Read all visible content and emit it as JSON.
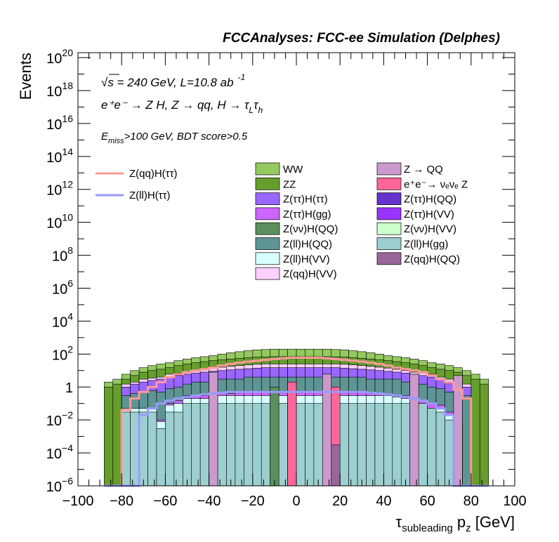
{
  "header": {
    "title": "FCCAnalyses: FCC-ee Simulation (Delphes)"
  },
  "info": {
    "sqrt_s": "√s = 240 GeV, L=10.8 ab",
    "lumi_exp": "-1",
    "process": "e⁺e⁻ → Z H, Z → qq, H → τ",
    "tau_sub_l": "L",
    "tau_sub_h": "h",
    "cuts": ">100 GeV, BDT score>0.5",
    "emiss_e": "E",
    "emiss_sub": "miss"
  },
  "chart_data": {
    "type": "bar",
    "xlabel": "τ",
    "xlabel_sub": "subleading",
    "xlabel_tail": " p",
    "xlabel_tail_sub": "z",
    "xlabel_unit": " [GeV]",
    "ylabel": "Events",
    "xlim": [
      -100,
      100
    ],
    "ylim": [
      1e-06,
      2e+20
    ],
    "log_y": true,
    "grid": false,
    "legend_position": "center",
    "x_ticks": [
      "−100",
      "−80",
      "−60",
      "−40",
      "−20",
      "0",
      "20",
      "40",
      "60",
      "80",
      "100"
    ],
    "y_ticks": [
      {
        "base": "10",
        "exp": "−6",
        "value": 1e-06
      },
      {
        "base": "10",
        "exp": "−4",
        "value": 0.0001
      },
      {
        "base": "10",
        "exp": "−2",
        "value": 0.01
      },
      {
        "base": "1",
        "exp": "",
        "value": 1
      },
      {
        "base": "10",
        "exp": "2",
        "value": 100.0
      },
      {
        "base": "10",
        "exp": "4",
        "value": 10000.0
      },
      {
        "base": "10",
        "exp": "6",
        "value": 1000000.0
      },
      {
        "base": "10",
        "exp": "8",
        "value": 100000000.0
      },
      {
        "base": "10",
        "exp": "10",
        "value": 10000000000.0
      },
      {
        "base": "10",
        "exp": "12",
        "value": 1000000000000.0
      },
      {
        "base": "10",
        "exp": "14",
        "value": 100000000000000.0
      },
      {
        "base": "10",
        "exp": "16",
        "value": 1e+16
      },
      {
        "base": "10",
        "exp": "18",
        "value": 1e+18
      },
      {
        "base": "10",
        "exp": "20",
        "value": 1e+20
      }
    ],
    "bin_edges": [
      -88,
      -84,
      -80,
      -76,
      -72,
      -68,
      -64,
      -60,
      -56,
      -52,
      -48,
      -44,
      -40,
      -36,
      -32,
      -28,
      -24,
      -20,
      -16,
      -12,
      -8,
      -4,
      0,
      4,
      8,
      12,
      16,
      20,
      24,
      28,
      32,
      36,
      40,
      44,
      48,
      52,
      56,
      60,
      64,
      68,
      72,
      76,
      80,
      84,
      88
    ],
    "stack_levels": [
      {
        "name": "Z(ll)H(gg)",
        "color": "#9ccfcf",
        "values": [
          1e-06,
          1e-06,
          0.03,
          0.03,
          0.03,
          0.03,
          0.003,
          0.03,
          0.03,
          0.1,
          0.1,
          0.1,
          0.1,
          0.1,
          0.1,
          0.1,
          0.1,
          0.1,
          0.1,
          0.1,
          0.1,
          0.1,
          0.1,
          0.1,
          0.1,
          0.1,
          0.1,
          0.1,
          0.1,
          0.1,
          0.1,
          0.1,
          0.1,
          0.1,
          0.1,
          0.1,
          0.1,
          0.05,
          0.03,
          0.01,
          0.01,
          1e-06,
          1e-06,
          1e-06
        ]
      },
      {
        "name": "Z(ll)H(VV)",
        "color": "#d8ffff",
        "values": [
          1e-06,
          1e-06,
          0.05,
          0.05,
          0.05,
          0.05,
          0.008,
          0.08,
          0.1,
          0.2,
          0.2,
          0.2,
          0.25,
          0.3,
          0.3,
          0.3,
          0.3,
          0.3,
          0.3,
          0.3,
          0.3,
          0.3,
          0.3,
          0.3,
          0.3,
          0.3,
          0.3,
          0.3,
          0.3,
          0.3,
          0.3,
          0.3,
          0.3,
          0.25,
          0.2,
          0.2,
          0.1,
          0.05,
          0.05,
          0.02,
          0.01,
          1e-06,
          1e-06,
          1e-06
        ]
      },
      {
        "name": "Z(ττ)H(gg)",
        "color": "#cc66ff",
        "values": [
          1e-06,
          1e-06,
          0.05,
          0.05,
          0.05,
          0.05,
          0.01,
          0.1,
          0.15,
          0.3,
          0.3,
          0.3,
          0.35,
          0.4,
          0.4,
          0.5,
          0.5,
          0.5,
          0.5,
          0.5,
          0.5,
          0.5,
          0.5,
          0.5,
          0.5,
          0.5,
          0.5,
          0.5,
          0.5,
          0.5,
          0.4,
          0.4,
          0.35,
          0.3,
          0.3,
          0.3,
          0.15,
          0.1,
          0.08,
          0.03,
          0.01,
          1e-06,
          1e-06,
          1e-06
        ]
      },
      {
        "name": "Z(ll)H(QQ)",
        "color": "#5f9494",
        "values": [
          1e-06,
          1e-06,
          0.3,
          0.4,
          0.5,
          0.6,
          0.5,
          0.8,
          1,
          1.5,
          2,
          2,
          3,
          3,
          3,
          3,
          4,
          4,
          4,
          4,
          4,
          4,
          4,
          4,
          4,
          4,
          4,
          4,
          4,
          4,
          3,
          3,
          3,
          3,
          2,
          2,
          1.5,
          1,
          0.8,
          0.5,
          0.4,
          0.3,
          1e-06,
          1e-06
        ]
      },
      {
        "name": "Z(ττ)H(ττ)",
        "color": "#9966ff",
        "values": [
          1e-06,
          1e-06,
          1,
          1.5,
          2,
          2.5,
          3,
          4,
          5,
          6,
          7,
          8,
          9,
          10,
          11,
          12,
          13,
          14,
          15,
          15,
          15,
          15,
          15,
          15,
          15,
          15,
          15,
          14,
          13,
          12,
          11,
          10,
          9,
          8,
          7,
          6,
          5,
          4,
          3,
          2,
          1.5,
          1,
          1e-06,
          1e-06
        ]
      },
      {
        "name": "Z(qq)H(VV)",
        "color": "#ffd0ff",
        "values": [
          1e-06,
          1e-06,
          1.5,
          2,
          3,
          3.5,
          4,
          6,
          7,
          8,
          10,
          12,
          14,
          16,
          18,
          20,
          22,
          24,
          25,
          25,
          25,
          25,
          25,
          25,
          25,
          25,
          25,
          24,
          22,
          20,
          18,
          16,
          14,
          12,
          10,
          8,
          7,
          6,
          4,
          3,
          2,
          1.5,
          1e-06,
          1e-06
        ]
      },
      {
        "name": "ZZ",
        "color": "#659e2c",
        "values": [
          1,
          1.5,
          3,
          5,
          8,
          10,
          12,
          15,
          20,
          25,
          30,
          35,
          40,
          45,
          50,
          55,
          60,
          65,
          68,
          70,
          70,
          70,
          70,
          70,
          70,
          70,
          68,
          65,
          60,
          55,
          50,
          45,
          40,
          35,
          30,
          25,
          20,
          15,
          12,
          10,
          8,
          5,
          3,
          1.5
        ]
      },
      {
        "name": "WW",
        "color": "#94c95f",
        "values": [
          2,
          3,
          6,
          10,
          15,
          20,
          25,
          30,
          40,
          50,
          60,
          70,
          80,
          100,
          120,
          140,
          160,
          180,
          190,
          200,
          200,
          200,
          200,
          200,
          200,
          200,
          190,
          180,
          160,
          140,
          120,
          100,
          80,
          70,
          60,
          50,
          40,
          30,
          25,
          20,
          15,
          10,
          6,
          3
        ]
      }
    ],
    "spikes": [
      {
        "name": "e⁺e⁻ → νₑνₑ Z",
        "color": "#ff6699",
        "bins": [
          [
            -4,
            0,
            2
          ],
          [
            16,
            20,
            1
          ]
        ]
      },
      {
        "name": "Z(νν)H(QQ)",
        "color": "#5d8f5d",
        "bins": [
          [
            -12,
            -8,
            1
          ]
        ]
      },
      {
        "name": "Z(qq)H(QQ)",
        "color": "#996699",
        "bins": [
          [
            16,
            20,
            0.0003
          ]
        ]
      },
      {
        "name": "Z → QQ",
        "color": "#cc99cc",
        "bins": [
          [
            -40,
            -36,
            8
          ],
          [
            12,
            16,
            6
          ],
          [
            52,
            56,
            6
          ],
          [
            72,
            76,
            5
          ]
        ]
      }
    ],
    "overlays": [
      {
        "name": "Z(qq)H(ττ)",
        "color": "#ff9999",
        "values": [
          1e-06,
          1e-06,
          0.04,
          0.2,
          0.5,
          1,
          2,
          4,
          6,
          8,
          10,
          12,
          15,
          20,
          25,
          30,
          35,
          40,
          45,
          50,
          55,
          60,
          60,
          60,
          60,
          55,
          50,
          45,
          40,
          35,
          30,
          25,
          20,
          15,
          12,
          10,
          8,
          5,
          3,
          2,
          0.7,
          0.2,
          1e-06,
          1e-06
        ]
      },
      {
        "name": "Z(ll)H(ττ)",
        "color": "#9999ff",
        "values": [
          1e-06,
          1e-06,
          1e-06,
          1e-06,
          0.02,
          0.05,
          0.1,
          0.15,
          0.2,
          0.25,
          0.3,
          0.35,
          0.4,
          0.45,
          0.5,
          0.5,
          0.5,
          0.5,
          0.5,
          0.5,
          0.5,
          0.5,
          0.5,
          0.5,
          0.5,
          0.5,
          0.5,
          0.5,
          0.5,
          0.5,
          0.45,
          0.4,
          0.35,
          0.3,
          0.25,
          0.2,
          0.15,
          0.1,
          0.05,
          0.02,
          1e-06,
          1e-06,
          1e-06,
          1e-06
        ]
      }
    ],
    "legend": {
      "lines": [
        {
          "label": "Z(qq)H(ττ)",
          "color": "#ff9999"
        },
        {
          "label": "Z(ll)H(ττ)",
          "color": "#9999ff"
        }
      ],
      "col1": [
        {
          "label": "WW",
          "color": "#94c95f"
        },
        {
          "label": "ZZ",
          "color": "#659e2c"
        },
        {
          "label": "Z(ττ)H(ττ)",
          "color": "#9966ff"
        },
        {
          "label": "Z(ττ)H(gg)",
          "color": "#cc66ff"
        },
        {
          "label": "Z(νν)H(QQ)",
          "color": "#5d8f5d"
        },
        {
          "label": "Z(ll)H(QQ)",
          "color": "#5f9494"
        },
        {
          "label": "Z(ll)H(VV)",
          "color": "#d8ffff"
        },
        {
          "label": "Z(qq)H(VV)",
          "color": "#ffd0ff"
        }
      ],
      "col2": [
        {
          "label": "Z → QQ",
          "color": "#cc99cc"
        },
        {
          "label": "e⁺e⁻→ νₑνₑ Z",
          "color": "#ff6699"
        },
        {
          "label": "Z(ττ)H(QQ)",
          "color": "#6633cc"
        },
        {
          "label": "Z(ττ)H(VV)",
          "color": "#9933ff"
        },
        {
          "label": "Z(νν)H(VV)",
          "color": "#ccffcc"
        },
        {
          "label": "Z(ll)H(gg)",
          "color": "#9ccfcf"
        },
        {
          "label": "Z(qq)H(QQ)",
          "color": "#996699"
        }
      ]
    }
  }
}
